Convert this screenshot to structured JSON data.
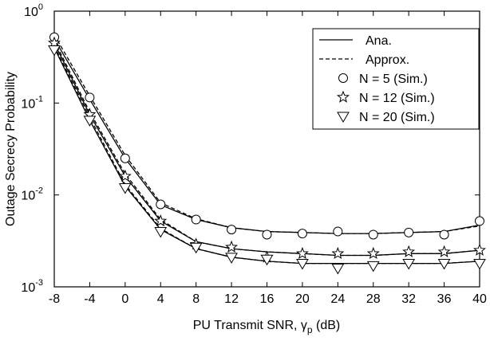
{
  "chart_data": {
    "type": "line",
    "y_label": "Outage Secrecy Probability",
    "x_label": {
      "text": "PU Transmit SNR, γ",
      "sub": "p",
      "suffix": " (dB)"
    },
    "x": [
      -8,
      -4,
      0,
      4,
      8,
      12,
      16,
      20,
      24,
      28,
      32,
      36,
      40
    ],
    "xlim": [
      -8,
      40
    ],
    "xticks": [
      -8,
      -4,
      0,
      4,
      8,
      12,
      16,
      20,
      24,
      28,
      32,
      36,
      40
    ],
    "ylim": [
      0.001,
      1
    ],
    "log_y": true,
    "yticks": [
      {
        "value": 0.001,
        "label": "10",
        "exponent": "-3"
      },
      {
        "value": 0.01,
        "label": "10",
        "exponent": "-2"
      },
      {
        "value": 0.1,
        "label": "10",
        "exponent": "-1"
      },
      {
        "value": 1,
        "label": "10",
        "exponent": "0"
      }
    ],
    "grid": false,
    "legend": "upper right",
    "series": [
      {
        "name": "Ana.",
        "line": "solid",
        "color": "#000000",
        "curves": [
          [
            0.5,
            0.11,
            0.025,
            0.0078,
            0.0054,
            0.0044,
            0.004,
            0.0039,
            0.0038,
            0.0038,
            0.0039,
            0.004,
            0.0047
          ],
          [
            0.45,
            0.075,
            0.016,
            0.0052,
            0.0031,
            0.0026,
            0.0024,
            0.0023,
            0.0022,
            0.0022,
            0.0023,
            0.0023,
            0.0025
          ],
          [
            0.4,
            0.065,
            0.0125,
            0.0042,
            0.0026,
            0.0021,
            0.0019,
            0.0018,
            0.0018,
            0.0018,
            0.0018,
            0.0018,
            0.0019
          ]
        ]
      },
      {
        "name": "Approx.",
        "line": "dashed",
        "color": "#000000",
        "curves": [
          [
            0.55,
            0.12,
            0.027,
            0.0082,
            0.0055,
            0.0044,
            0.004,
            0.0039,
            0.0038,
            0.0038,
            0.0039,
            0.004,
            0.0046
          ],
          [
            0.48,
            0.08,
            0.017,
            0.0054,
            0.0031,
            0.0026,
            0.0024,
            0.0023,
            0.0022,
            0.0022,
            0.0023,
            0.0023,
            0.0025
          ],
          [
            0.42,
            0.07,
            0.013,
            0.0043,
            0.0026,
            0.0021,
            0.0019,
            0.0018,
            0.0018,
            0.0018,
            0.0018,
            0.0018,
            0.0019
          ]
        ]
      },
      {
        "name": "N = 5 (Sim.)",
        "marker": "circle",
        "color": "#000000",
        "values": [
          0.52,
          0.115,
          0.025,
          0.0079,
          0.0054,
          0.0042,
          0.0037,
          0.0038,
          0.004,
          0.0037,
          0.0039,
          0.0037,
          0.0052
        ]
      },
      {
        "name": "N = 12 (Sim.)",
        "marker": "star",
        "color": "#000000",
        "values": [
          0.45,
          0.075,
          0.016,
          0.0052,
          0.0029,
          0.0027,
          0.0021,
          0.0023,
          0.0023,
          0.0023,
          0.0024,
          0.0024,
          0.0025
        ]
      },
      {
        "name": "N = 20 (Sim.)",
        "marker": "triangle-down",
        "color": "#000000",
        "values": [
          0.38,
          0.065,
          0.012,
          0.004,
          0.0027,
          0.0021,
          0.002,
          0.0018,
          0.0016,
          0.0017,
          0.0018,
          0.0018,
          0.0018
        ]
      }
    ]
  }
}
